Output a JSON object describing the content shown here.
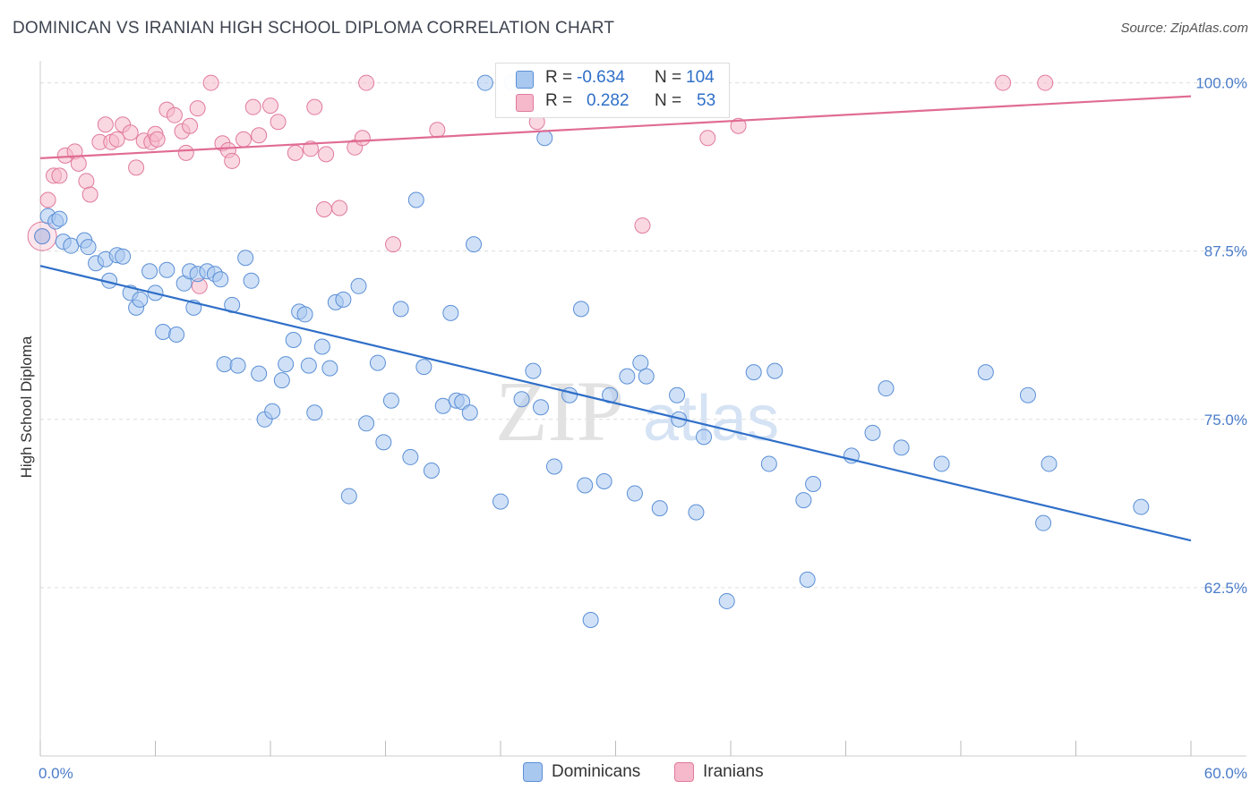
{
  "title": "DOMINICAN VS IRANIAN HIGH SCHOOL DIPLOMA CORRELATION CHART",
  "source": "Source: ZipAtlas.com",
  "legend_box": {
    "rows": [
      {
        "r_label": "R =",
        "r_value": "-0.634",
        "n_label": "N =",
        "n_value": "104"
      },
      {
        "r_label": "R =",
        "r_value": "0.282",
        "n_label": "N =",
        "n_value": "53"
      }
    ]
  },
  "bottom_legend": [
    "Dominicans",
    "Iranians"
  ],
  "watermark": {
    "zip": "ZIP",
    "atlas": "atlas"
  },
  "colors": {
    "blue_fill": "#a9c8f0",
    "blue_edge": "#5b8fd6",
    "blue_line": "#2f6fc8",
    "pink_fill": "#f6b8cb",
    "pink_edge": "#e07a9c",
    "pink_line": "#e06c94",
    "grid": "#dddddd",
    "tick_text": "#4a7cc9"
  },
  "chart_data": {
    "type": "scatter",
    "title": "DOMINICAN VS IRANIAN HIGH SCHOOL DIPLOMA CORRELATION CHART",
    "xlabel": "",
    "ylabel": "High School Diploma",
    "xlim": [
      0,
      60
    ],
    "ylim": [
      50,
      101.5
    ],
    "x_tick_labels": [
      "0.0%",
      "60.0%"
    ],
    "y_ticks": [
      62.5,
      75.0,
      87.5,
      100.0
    ],
    "y_tick_labels": [
      "62.5%",
      "75.0%",
      "87.5%",
      "100.0%"
    ],
    "grid": "horizontal dashed",
    "legend_placement": "top-center",
    "series": [
      {
        "name": "Dominicans",
        "r": -0.634,
        "n": 104,
        "trend": {
          "x": [
            0,
            60
          ],
          "y": [
            86.4,
            66.0
          ]
        },
        "points": [
          [
            0.1,
            88.6
          ],
          [
            0.4,
            90.1
          ],
          [
            0.8,
            89.7
          ],
          [
            1.0,
            89.9
          ],
          [
            1.2,
            88.2
          ],
          [
            1.6,
            87.9
          ],
          [
            2.3,
            88.3
          ],
          [
            2.5,
            87.8
          ],
          [
            2.9,
            86.6
          ],
          [
            3.4,
            86.9
          ],
          [
            3.6,
            85.3
          ],
          [
            4.0,
            87.2
          ],
          [
            4.3,
            87.1
          ],
          [
            4.7,
            84.4
          ],
          [
            5.0,
            83.3
          ],
          [
            5.2,
            83.9
          ],
          [
            5.7,
            86.0
          ],
          [
            6.0,
            84.4
          ],
          [
            6.4,
            81.5
          ],
          [
            6.6,
            86.1
          ],
          [
            7.1,
            81.3
          ],
          [
            7.5,
            85.1
          ],
          [
            7.8,
            86.0
          ],
          [
            8.0,
            83.3
          ],
          [
            8.2,
            85.8
          ],
          [
            8.7,
            86.0
          ],
          [
            9.1,
            85.8
          ],
          [
            9.4,
            85.4
          ],
          [
            9.6,
            79.1
          ],
          [
            10.0,
            83.5
          ],
          [
            10.3,
            79.0
          ],
          [
            10.7,
            87.0
          ],
          [
            11.0,
            85.3
          ],
          [
            11.4,
            78.4
          ],
          [
            11.7,
            75.0
          ],
          [
            12.1,
            75.6
          ],
          [
            12.6,
            77.9
          ],
          [
            12.8,
            79.1
          ],
          [
            13.2,
            80.9
          ],
          [
            13.5,
            83.0
          ],
          [
            13.8,
            82.8
          ],
          [
            14.0,
            79.0
          ],
          [
            14.3,
            75.5
          ],
          [
            14.7,
            80.4
          ],
          [
            15.1,
            78.8
          ],
          [
            15.4,
            83.7
          ],
          [
            15.8,
            83.9
          ],
          [
            16.1,
            69.3
          ],
          [
            16.6,
            84.9
          ],
          [
            17.0,
            74.7
          ],
          [
            17.6,
            79.2
          ],
          [
            17.9,
            73.3
          ],
          [
            18.3,
            76.4
          ],
          [
            18.8,
            83.2
          ],
          [
            19.3,
            72.2
          ],
          [
            19.6,
            91.3
          ],
          [
            20.0,
            78.9
          ],
          [
            20.4,
            71.2
          ],
          [
            21.0,
            76.0
          ],
          [
            21.4,
            82.9
          ],
          [
            21.7,
            76.4
          ],
          [
            22.0,
            76.3
          ],
          [
            22.4,
            75.5
          ],
          [
            22.6,
            88.0
          ],
          [
            23.2,
            100.0
          ],
          [
            24.0,
            68.9
          ],
          [
            24.6,
            100.0
          ],
          [
            25.1,
            76.5
          ],
          [
            25.7,
            78.6
          ],
          [
            26.1,
            75.9
          ],
          [
            26.3,
            95.9
          ],
          [
            26.8,
            71.5
          ],
          [
            27.6,
            76.8
          ],
          [
            28.2,
            83.2
          ],
          [
            28.4,
            70.1
          ],
          [
            28.7,
            60.1
          ],
          [
            29.4,
            70.4
          ],
          [
            29.7,
            76.8
          ],
          [
            30.6,
            78.2
          ],
          [
            31.0,
            69.5
          ],
          [
            31.3,
            79.2
          ],
          [
            31.6,
            78.2
          ],
          [
            32.3,
            68.4
          ],
          [
            33.2,
            76.8
          ],
          [
            33.3,
            75.0
          ],
          [
            34.2,
            68.1
          ],
          [
            34.6,
            73.7
          ],
          [
            35.8,
            61.5
          ],
          [
            37.2,
            78.5
          ],
          [
            38.0,
            71.7
          ],
          [
            38.3,
            78.6
          ],
          [
            39.8,
            69.0
          ],
          [
            40.0,
            63.1
          ],
          [
            40.3,
            70.2
          ],
          [
            42.3,
            72.3
          ],
          [
            43.4,
            74.0
          ],
          [
            44.1,
            77.3
          ],
          [
            44.9,
            72.9
          ],
          [
            47.0,
            71.7
          ],
          [
            49.3,
            78.5
          ],
          [
            51.5,
            76.8
          ],
          [
            52.3,
            67.3
          ],
          [
            52.6,
            71.7
          ],
          [
            57.4,
            68.5
          ]
        ]
      },
      {
        "name": "Iranians",
        "r": 0.282,
        "n": 53,
        "trend": {
          "x": [
            0,
            60
          ],
          "y": [
            94.4,
            99.0
          ]
        },
        "points": [
          [
            0.1,
            88.6
          ],
          [
            0.4,
            91.3
          ],
          [
            0.7,
            93.1
          ],
          [
            1.0,
            93.1
          ],
          [
            1.3,
            94.6
          ],
          [
            1.8,
            94.9
          ],
          [
            2.0,
            94.0
          ],
          [
            2.4,
            92.7
          ],
          [
            2.6,
            91.7
          ],
          [
            3.1,
            95.6
          ],
          [
            3.4,
            96.9
          ],
          [
            3.7,
            95.6
          ],
          [
            4.0,
            95.8
          ],
          [
            4.3,
            96.9
          ],
          [
            4.7,
            96.3
          ],
          [
            5.0,
            93.7
          ],
          [
            5.4,
            95.7
          ],
          [
            5.8,
            95.6
          ],
          [
            6.0,
            96.2
          ],
          [
            6.1,
            95.8
          ],
          [
            6.6,
            98.0
          ],
          [
            7.0,
            97.6
          ],
          [
            7.4,
            96.4
          ],
          [
            7.6,
            94.8
          ],
          [
            7.8,
            96.8
          ],
          [
            8.2,
            98.1
          ],
          [
            8.3,
            84.9
          ],
          [
            8.9,
            100.0
          ],
          [
            9.5,
            95.5
          ],
          [
            9.8,
            95.0
          ],
          [
            10.0,
            94.2
          ],
          [
            10.6,
            95.8
          ],
          [
            11.1,
            98.2
          ],
          [
            11.4,
            96.1
          ],
          [
            12.0,
            98.3
          ],
          [
            12.4,
            97.1
          ],
          [
            13.3,
            94.8
          ],
          [
            14.1,
            95.1
          ],
          [
            14.3,
            98.2
          ],
          [
            14.8,
            90.6
          ],
          [
            14.9,
            94.7
          ],
          [
            15.6,
            90.7
          ],
          [
            16.4,
            95.2
          ],
          [
            16.8,
            95.9
          ],
          [
            17.0,
            100.0
          ],
          [
            18.4,
            88.0
          ],
          [
            20.7,
            96.5
          ],
          [
            25.9,
            97.1
          ],
          [
            31.4,
            89.4
          ],
          [
            34.8,
            95.9
          ],
          [
            36.4,
            96.8
          ],
          [
            50.2,
            100.0
          ],
          [
            52.4,
            100.0
          ]
        ]
      }
    ]
  }
}
